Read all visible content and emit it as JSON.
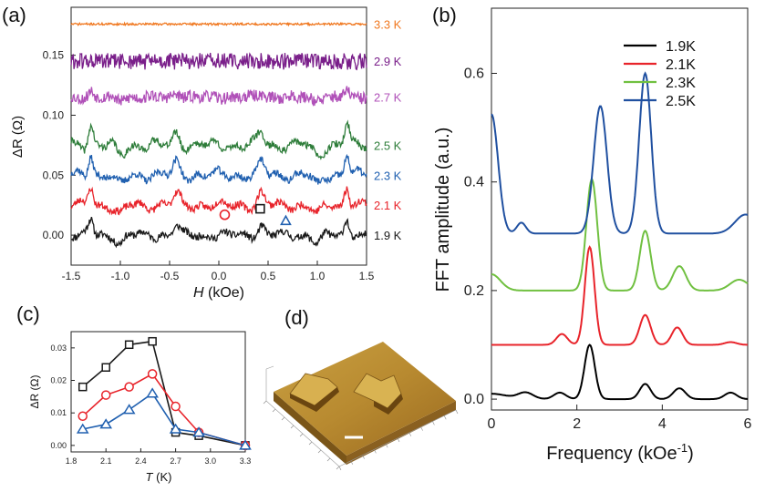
{
  "panels": {
    "a": {
      "label": "(a)"
    },
    "b": {
      "label": "(b)"
    },
    "c": {
      "label": "(c)"
    },
    "d": {
      "label": "(d)"
    }
  },
  "chart_data": [
    {
      "id": "a",
      "type": "line",
      "xlabel_sym": "H",
      "xlabel_unit": " (kOe)",
      "ylabel": "ΔR (Ω)",
      "xlim": [
        -1.5,
        1.5
      ],
      "ylim": [
        -0.025,
        0.19
      ],
      "xticks": [
        "-1.5",
        "-1.0",
        "-0.5",
        "0.0",
        "0.5",
        "1.0",
        "1.5"
      ],
      "yticks": [
        "0.00",
        "0.05",
        "0.10",
        "0.15"
      ],
      "series": [
        {
          "name": "1.9 K",
          "color": "#1a1a1a",
          "offset": 0.0,
          "amp": 0.008,
          "noise": 0.003,
          "seed": 11
        },
        {
          "name": "2.1 K",
          "color": "#e8242b",
          "offset": 0.025,
          "amp": 0.01,
          "noise": 0.003,
          "seed": 23
        },
        {
          "name": "2.3 K",
          "color": "#2060b0",
          "offset": 0.05,
          "amp": 0.011,
          "noise": 0.003,
          "seed": 37
        },
        {
          "name": "2.5 K",
          "color": "#2e7d3a",
          "offset": 0.075,
          "amp": 0.011,
          "noise": 0.003,
          "seed": 41
        },
        {
          "name": "2.7 K",
          "color": "#b050b8",
          "offset": 0.115,
          "amp": 0.003,
          "noise": 0.005,
          "seed": 53
        },
        {
          "name": "2.9 K",
          "color": "#7a1f8a",
          "offset": 0.145,
          "amp": 0.0,
          "noise": 0.007,
          "seed": 61
        },
        {
          "name": "3.3 K",
          "color": "#f07820",
          "offset": 0.176,
          "amp": 0.0,
          "noise": 0.0009,
          "seed": 71
        }
      ],
      "markers": [
        {
          "shape": "circle",
          "color": "#e8242b",
          "x": 0.06,
          "y": 0.017
        },
        {
          "shape": "square",
          "color": "#1a1a1a",
          "x": 0.42,
          "y": 0.022
        },
        {
          "shape": "triangle",
          "color": "#2060b0",
          "x": 0.68,
          "y": 0.012
        }
      ]
    },
    {
      "id": "b",
      "type": "line",
      "xlabel": "Frequency (kOe",
      "xlabel_sup": "-1",
      "xlabel_tail": ")",
      "ylabel": "FFT amplitude (a.u.)",
      "xlim": [
        0,
        6
      ],
      "ylim": [
        -0.02,
        0.72
      ],
      "xticks": [
        "0",
        "2",
        "4",
        "6"
      ],
      "yticks": [
        "0.0",
        "0.2",
        "0.4",
        "0.6"
      ],
      "legend": [
        {
          "name": "1.9K",
          "color": "#000000"
        },
        {
          "name": "2.1K",
          "color": "#e8242b"
        },
        {
          "name": "2.3K",
          "color": "#70c040"
        },
        {
          "name": "2.5K",
          "color": "#2050a0"
        }
      ],
      "series": [
        {
          "name": "1.9K",
          "color": "#000000",
          "base": 0.0,
          "peaks": [
            [
              0.0,
              0.01,
              0.5
            ],
            [
              0.8,
              0.012,
              0.25
            ],
            [
              1.6,
              0.012,
              0.2
            ],
            [
              2.3,
              0.1,
              0.17
            ],
            [
              3.6,
              0.028,
              0.18
            ],
            [
              4.4,
              0.02,
              0.2
            ],
            [
              5.6,
              0.012,
              0.2
            ]
          ]
        },
        {
          "name": "2.1K",
          "color": "#e8242b",
          "base": 0.1,
          "peaks": [
            [
              1.65,
              0.02,
              0.18
            ],
            [
              2.3,
              0.18,
              0.16
            ],
            [
              3.6,
              0.055,
              0.18
            ],
            [
              4.35,
              0.032,
              0.18
            ],
            [
              5.6,
              0.005,
              0.2
            ]
          ]
        },
        {
          "name": "2.3K",
          "color": "#70c040",
          "base": 0.2,
          "peaks": [
            [
              0.0,
              0.03,
              0.3
            ],
            [
              2.35,
              0.205,
              0.18
            ],
            [
              3.6,
              0.11,
              0.18
            ],
            [
              4.4,
              0.045,
              0.22
            ],
            [
              5.8,
              0.02,
              0.3
            ]
          ]
        },
        {
          "name": "2.5K",
          "color": "#2050a0",
          "base": 0.305,
          "peaks": [
            [
              0.0,
              0.22,
              0.22
            ],
            [
              0.7,
              0.02,
              0.15
            ],
            [
              2.55,
              0.235,
              0.22
            ],
            [
              3.6,
              0.295,
              0.2
            ],
            [
              5.95,
              0.035,
              0.35
            ]
          ]
        }
      ]
    },
    {
      "id": "c",
      "type": "line",
      "xlabel_sym": "T",
      "xlabel_unit": " (K)",
      "ylabel": "ΔR (Ω)",
      "xlim": [
        1.8,
        3.3
      ],
      "ylim": [
        -0.002,
        0.035
      ],
      "xticks": [
        "1.8",
        "2.1",
        "2.4",
        "2.7",
        "3.0",
        "3.3"
      ],
      "yticks": [
        "0.00",
        "0.01",
        "0.02",
        "0.03"
      ],
      "x": [
        1.9,
        2.1,
        2.3,
        2.5,
        2.7,
        2.9,
        3.3
      ],
      "series": [
        {
          "name": "square",
          "color": "#1a1a1a",
          "marker": "square",
          "values": [
            0.018,
            0.024,
            0.031,
            0.032,
            0.004,
            0.003,
            0.0
          ]
        },
        {
          "name": "circle",
          "color": "#e8242b",
          "marker": "circle",
          "values": [
            0.009,
            0.0155,
            0.018,
            0.022,
            0.012,
            0.004,
            0.0
          ]
        },
        {
          "name": "triangle",
          "color": "#2060b0",
          "marker": "triangle",
          "values": [
            0.005,
            0.0065,
            0.011,
            0.016,
            0.005,
            0.004,
            0.0
          ]
        }
      ]
    }
  ]
}
